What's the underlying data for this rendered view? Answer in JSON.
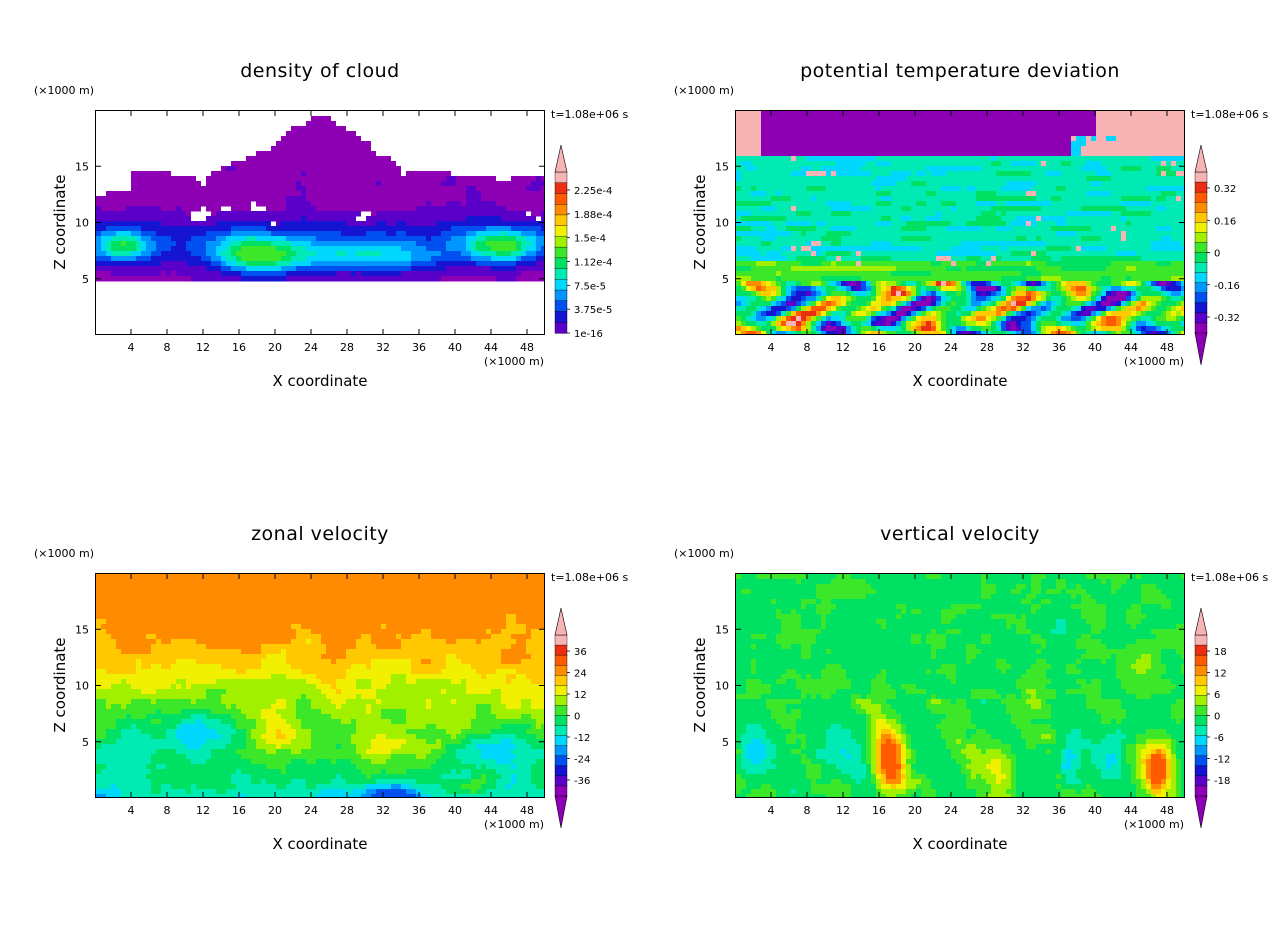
{
  "figure": {
    "unit_label": "(×1000 m)",
    "time_label": "t=1.08e+06 s"
  },
  "chart_data": [
    {
      "type": "heatmap",
      "title": "density of cloud",
      "xlabel": "X coordinate",
      "ylabel": "Z coordinate",
      "x_unit": "(×1000 m)",
      "y_unit": "(×1000 m)",
      "time": "t=1.08e+06 s",
      "xlim": [
        0,
        50
      ],
      "ylim": [
        0,
        20
      ],
      "xticks": [
        4,
        8,
        12,
        16,
        20,
        24,
        28,
        32,
        36,
        40,
        44,
        48
      ],
      "yticks": [
        5,
        10,
        15
      ],
      "colorbar_labels": [
        "2.25e-4",
        "1.88e-4",
        "1.5e-4",
        "1.12e-4",
        "7.5e-5",
        "3.75e-5",
        "1e-16"
      ],
      "colorbar_arrows": [
        "top"
      ],
      "colors": [
        "#8e00b4",
        "#5a00c8",
        "#1414d2",
        "#0050f0",
        "#0096ff",
        "#00d7ff",
        "#00ebb4",
        "#00e164",
        "#3ce628",
        "#a0f000",
        "#f0f000",
        "#ffc800",
        "#ff8c00",
        "#ff5a00",
        "#eb2d14",
        "#f8b4b4"
      ]
    },
    {
      "type": "heatmap",
      "title": "potential temperature deviation",
      "xlabel": "X coordinate",
      "ylabel": "Z coordinate",
      "x_unit": "(×1000 m)",
      "y_unit": "(×1000 m)",
      "time": "t=1.08e+06 s",
      "xlim": [
        0,
        50
      ],
      "ylim": [
        0,
        20
      ],
      "xticks": [
        4,
        8,
        12,
        16,
        20,
        24,
        28,
        32,
        36,
        40,
        44,
        48
      ],
      "yticks": [
        5,
        10,
        15
      ],
      "colorbar_labels": [
        "0.32",
        "0.16",
        "0",
        "-0.16",
        "-0.32"
      ],
      "colorbar_arrows": [
        "top",
        "bottom"
      ],
      "colors": [
        "#8e00b4",
        "#5a00c8",
        "#1414d2",
        "#0050f0",
        "#0096ff",
        "#00d7ff",
        "#00ebb4",
        "#00e164",
        "#3ce628",
        "#a0f000",
        "#f0f000",
        "#ffc800",
        "#ff8c00",
        "#ff5a00",
        "#eb2d14",
        "#f8b4b4"
      ]
    },
    {
      "type": "heatmap",
      "title": "zonal velocity",
      "xlabel": "X coordinate",
      "ylabel": "Z coordinate",
      "x_unit": "(×1000 m)",
      "y_unit": "(×1000 m)",
      "time": "t=1.08e+06 s",
      "xlim": [
        0,
        50
      ],
      "ylim": [
        0,
        20
      ],
      "xticks": [
        4,
        8,
        12,
        16,
        20,
        24,
        28,
        32,
        36,
        40,
        44,
        48
      ],
      "yticks": [
        5,
        10,
        15
      ],
      "colorbar_labels": [
        "36",
        "24",
        "12",
        "0",
        "-12",
        "-24",
        "-36"
      ],
      "colorbar_arrows": [
        "top",
        "bottom"
      ],
      "colors": [
        "#8e00b4",
        "#5a00c8",
        "#1414d2",
        "#0050f0",
        "#0096ff",
        "#00d7ff",
        "#00ebb4",
        "#00e164",
        "#3ce628",
        "#a0f000",
        "#f0f000",
        "#ffc800",
        "#ff8c00",
        "#ff5a00",
        "#eb2d14",
        "#f8b4b4"
      ]
    },
    {
      "type": "heatmap",
      "title": "vertical velocity",
      "xlabel": "X coordinate",
      "ylabel": "Z coordinate",
      "x_unit": "(×1000 m)",
      "y_unit": "(×1000 m)",
      "time": "t=1.08e+06 s",
      "xlim": [
        0,
        50
      ],
      "ylim": [
        0,
        20
      ],
      "xticks": [
        4,
        8,
        12,
        16,
        20,
        24,
        28,
        32,
        36,
        40,
        44,
        48
      ],
      "yticks": [
        5,
        10,
        15
      ],
      "colorbar_labels": [
        "18",
        "12",
        "6",
        "0",
        "-6",
        "-12",
        "-18"
      ],
      "colorbar_arrows": [
        "top",
        "bottom"
      ],
      "colors": [
        "#8e00b4",
        "#5a00c8",
        "#1414d2",
        "#0050f0",
        "#0096ff",
        "#00d7ff",
        "#00ebb4",
        "#00e164",
        "#3ce628",
        "#a0f000",
        "#f0f000",
        "#ffc800",
        "#ff8c00",
        "#ff5a00",
        "#eb2d14",
        "#f8b4b4"
      ]
    }
  ]
}
